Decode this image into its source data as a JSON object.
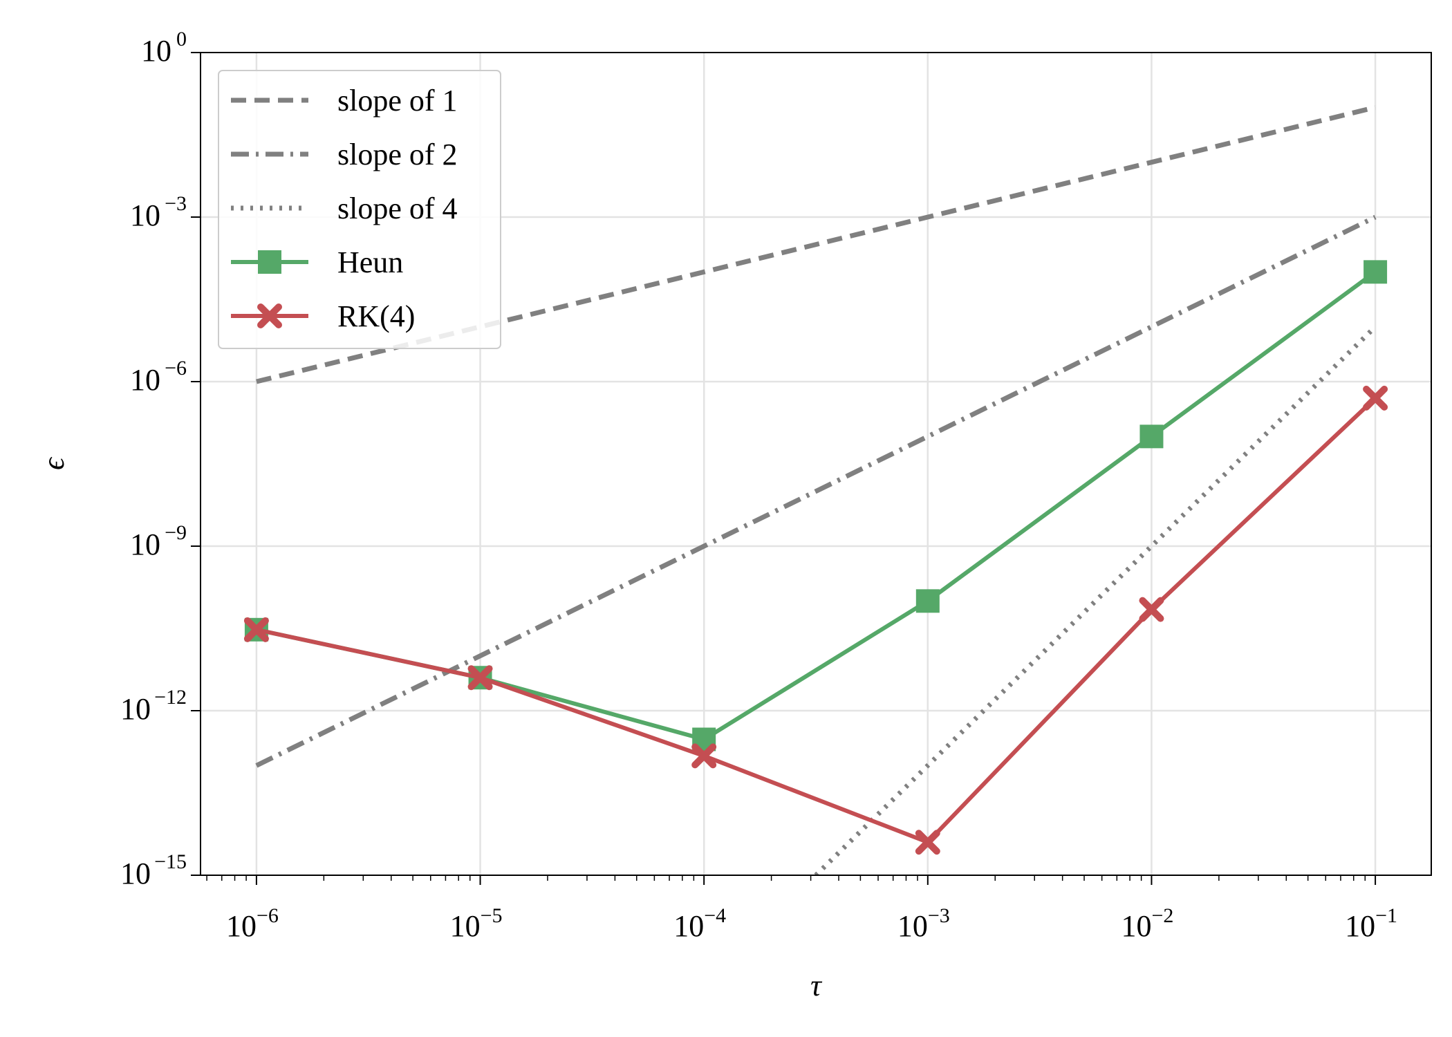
{
  "chart_data": {
    "type": "line",
    "x_scale": "log",
    "y_scale": "log",
    "xlabel": "τ",
    "ylabel": "ϵ",
    "xlim_exp": [
      -6.25,
      -0.75
    ],
    "ylim_exp": [
      -15,
      0
    ],
    "x_ticks": [
      {
        "exp": -6,
        "base": "10",
        "sup": "−6"
      },
      {
        "exp": -5,
        "base": "10",
        "sup": "−5"
      },
      {
        "exp": -4,
        "base": "10",
        "sup": "−4"
      },
      {
        "exp": -3,
        "base": "10",
        "sup": "−3"
      },
      {
        "exp": -2,
        "base": "10",
        "sup": "−2"
      },
      {
        "exp": -1,
        "base": "10",
        "sup": "−1"
      }
    ],
    "y_ticks": [
      {
        "exp": 0,
        "base": "10",
        "sup": "0"
      },
      {
        "exp": -3,
        "base": "10",
        "sup": "−3"
      },
      {
        "exp": -6,
        "base": "10",
        "sup": "−6"
      },
      {
        "exp": -9,
        "base": "10",
        "sup": "−9"
      },
      {
        "exp": -12,
        "base": "10",
        "sup": "−12"
      },
      {
        "exp": -15,
        "base": "10",
        "sup": "−15"
      }
    ],
    "grid": true,
    "legend_position": "top-left",
    "series": [
      {
        "name": "slope of 1",
        "style": "dashed",
        "color": "#808080",
        "marker": "none",
        "x": [
          1e-06,
          0.1
        ],
        "y": [
          1e-06,
          0.1
        ]
      },
      {
        "name": "slope of 2",
        "style": "dashdot",
        "color": "#808080",
        "marker": "none",
        "x": [
          1e-06,
          0.1
        ],
        "y": [
          1e-13,
          0.001
        ]
      },
      {
        "name": "slope of 4",
        "style": "dotted",
        "color": "#808080",
        "marker": "none",
        "x": [
          0.000316,
          0.1
        ],
        "y": [
          1e-15,
          1e-05
        ]
      },
      {
        "name": "Heun",
        "style": "solid",
        "color": "#55a868",
        "marker": "square",
        "x": [
          1e-06,
          1e-05,
          0.0001,
          0.001,
          0.01,
          0.1
        ],
        "y": [
          3e-11,
          4e-12,
          3e-13,
          1e-10,
          1e-07,
          0.0001
        ]
      },
      {
        "name": "RK(4)",
        "style": "solid",
        "color": "#c44e52",
        "marker": "x",
        "x": [
          1e-06,
          1e-05,
          0.0001,
          0.001,
          0.01,
          0.1
        ],
        "y": [
          3e-11,
          4e-12,
          1.5e-13,
          4e-15,
          7e-11,
          5e-07
        ]
      }
    ]
  }
}
